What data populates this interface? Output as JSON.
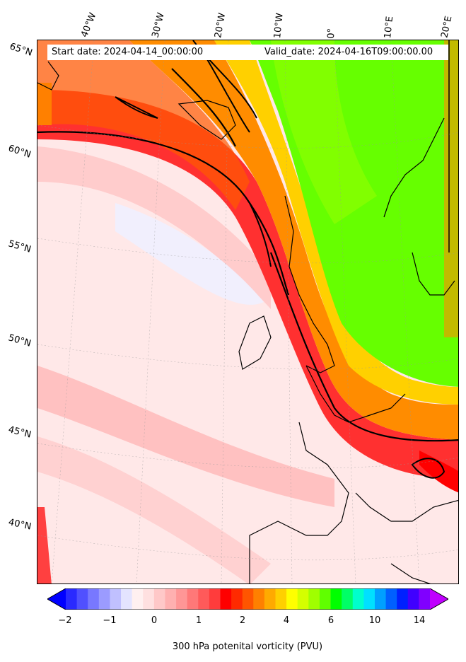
{
  "header": {
    "start_date": "Start date: 2024-04-14_00:00:00",
    "valid_date": "Valid_date: 2024-04-16T09:00:00.00"
  },
  "longitude_labels": [
    "40°W",
    "30°W",
    "20°W",
    "10°W",
    "0°",
    "10°E",
    "20°E"
  ],
  "latitude_labels": [
    "65°N",
    "60°N",
    "55°N",
    "50°N",
    "45°N",
    "40°N"
  ],
  "colorbar": {
    "label": "300 hPa potenital vorticity (PVU)",
    "ticks": [
      "−2",
      "−1",
      "0",
      "1",
      "2",
      "4",
      "6",
      "10",
      "14"
    ],
    "colors": [
      "#0000ff",
      "#2a2aff",
      "#5050ff",
      "#7878ff",
      "#9b9bff",
      "#c0c0ff",
      "#e4e4ff",
      "#fff0f0",
      "#ffe0e0",
      "#ffc8c8",
      "#ffb0b0",
      "#ff9696",
      "#ff7878",
      "#ff5a5a",
      "#ff3c3c",
      "#ff0000",
      "#ff2a00",
      "#ff5500",
      "#ff8000",
      "#ffaa00",
      "#ffd000",
      "#ffff00",
      "#d4ff00",
      "#a0ff00",
      "#60ff00",
      "#00ff00",
      "#00ff66",
      "#00ffcc",
      "#00e0ff",
      "#00a0ff",
      "#0060ff",
      "#0020ff",
      "#4000ff",
      "#8000ff",
      "#c000ff"
    ]
  }
}
